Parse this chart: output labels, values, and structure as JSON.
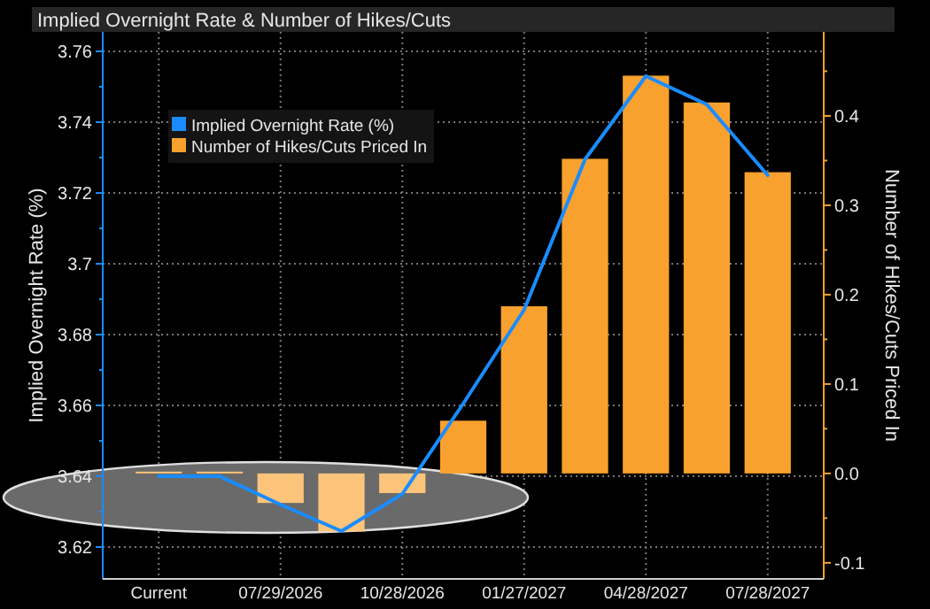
{
  "chart_data": {
    "type": "bar",
    "title": "Implied Overnight Rate & Number of Hikes/Cuts",
    "ylabel": "Implied Overnight Rate (%)",
    "y2label": "Number of Hikes/Cuts Priced In",
    "categories": [
      "Current",
      null,
      "07/29/2026",
      null,
      "10/28/2026",
      null,
      "01/27/2027",
      null,
      "04/28/2027",
      null,
      "07/28/2027"
    ],
    "series": [
      {
        "name": "Implied Overnight Rate (%)",
        "type": "line",
        "color": "#1a8cff",
        "values": [
          3.64,
          3.64,
          3.632,
          3.6245,
          3.635,
          3.6605,
          3.687,
          3.7295,
          3.753,
          3.745,
          3.725
        ]
      },
      {
        "name": "Number of Hikes/Cuts Priced In",
        "axis": "y2",
        "color": "#f9a12e",
        "colors": [
          "#fcc47a",
          "#fcc47a",
          "#fcc47a",
          "#fcc47a",
          "#fcc47a",
          "#f9a12e",
          "#f9a12e",
          "#f9a12e",
          "#f9a12e",
          "#f9a12e",
          "#f9a12e"
        ],
        "values": [
          0.002,
          0.002,
          -0.033,
          -0.065,
          -0.022,
          0.059,
          0.187,
          0.352,
          0.445,
          0.415,
          0.337
        ]
      }
    ],
    "ylim": [
      3.611,
      3.7655
    ],
    "yticks": [
      3.62,
      {
        "value": 3.63,
        "label": null
      },
      3.64,
      {
        "value": 3.65,
        "label": null
      },
      3.66,
      {
        "value": 3.67,
        "label": null
      },
      3.68,
      {
        "value": 3.69,
        "label": null
      },
      {
        "value": 3.7,
        "label": "3.7"
      },
      {
        "value": 3.71,
        "label": null
      },
      3.72,
      {
        "value": 3.73,
        "label": null
      },
      3.74,
      {
        "value": 3.75,
        "label": null
      },
      3.76
    ],
    "y2lim": [
      -0.118,
      0.494
    ],
    "y2ticks": [
      {
        "value": -0.1,
        "label": "-0.1"
      },
      {
        "value": -0.05,
        "label": null
      },
      {
        "value": 0,
        "label": "0.0"
      },
      {
        "value": 0.05,
        "label": null
      },
      0.1,
      {
        "value": 0.15,
        "label": null
      },
      0.2,
      {
        "value": 0.25,
        "label": null
      },
      0.3,
      {
        "value": 0.35,
        "label": null
      },
      0.4,
      {
        "value": 0.45,
        "label": null
      }
    ],
    "grid": true,
    "legend": "top left"
  }
}
